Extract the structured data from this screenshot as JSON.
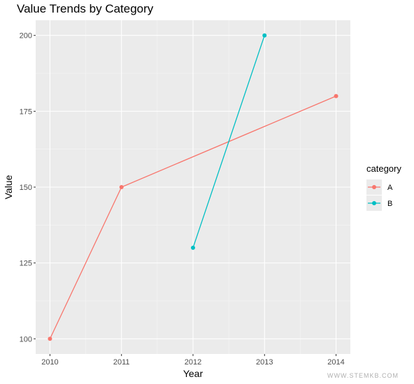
{
  "chart_data": {
    "type": "line",
    "title": "Value Trends by Category",
    "xlabel": "Year",
    "ylabel": "Value",
    "x_ticks": [
      2010,
      2011,
      2012,
      2013,
      2014
    ],
    "y_ticks": [
      100,
      125,
      150,
      175,
      200
    ],
    "xlim": [
      2009.8,
      2014.2
    ],
    "ylim": [
      95,
      205
    ],
    "grid": true,
    "legend": {
      "title": "category",
      "position": "right"
    },
    "series": [
      {
        "name": "A",
        "color": "#F8766D",
        "x": [
          2010,
          2011,
          2014
        ],
        "y": [
          100,
          150,
          180
        ]
      },
      {
        "name": "B",
        "color": "#00BFC4",
        "x": [
          2012,
          2013
        ],
        "y": [
          130,
          200
        ]
      }
    ]
  },
  "watermark": "WWW.STEMKB.COM"
}
